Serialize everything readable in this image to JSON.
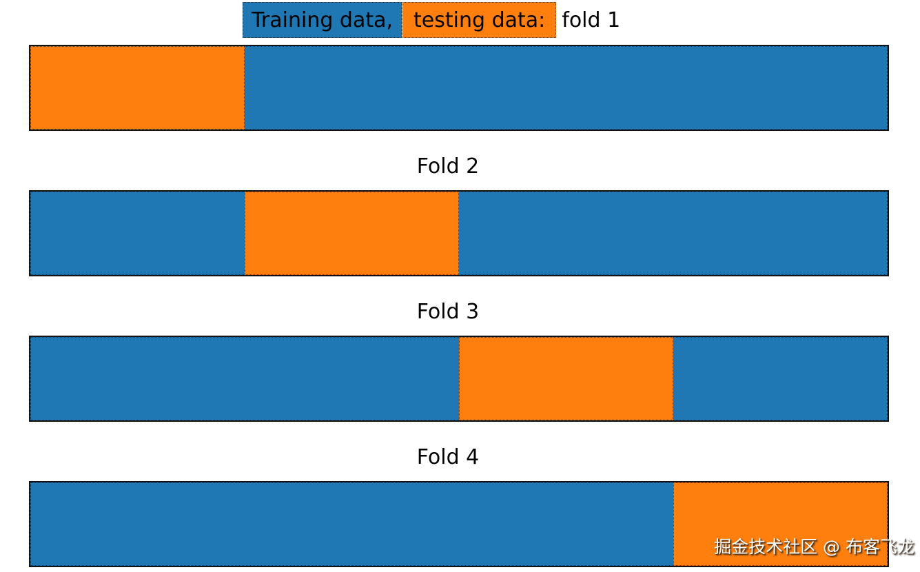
{
  "palette": {
    "background": "#ffffff",
    "train": "#1f77b4",
    "test": "#ff7f0e",
    "edge": "#111111",
    "watermark_text": "#ffffff"
  },
  "title": {
    "train_chip": "Training data,",
    "test_chip": "testing data:",
    "suffix": "fold 1"
  },
  "fold_labels": {
    "fold2": "Fold 2",
    "fold3": "Fold 3",
    "fold4": "Fold 4"
  },
  "folds": [
    {
      "id": "fold 1",
      "test_left_pct": "0%",
      "test_width_pct": "25%"
    },
    {
      "id": "fold 2",
      "test_left_pct": "25%",
      "test_width_pct": "25%"
    },
    {
      "id": "fold 3",
      "test_left_pct": "50%",
      "test_width_pct": "25%"
    },
    {
      "id": "fold 4",
      "test_left_pct": "75%",
      "test_width_pct": "25%"
    }
  ],
  "diagram_data": {
    "type": "k-fold-cross-validation",
    "n_folds": 4,
    "legend": {
      "train": "Training data",
      "test": "testing data"
    },
    "test_fraction_per_fold": 0.25,
    "test_quarter_by_fold": [
      1,
      2,
      3,
      4
    ]
  },
  "watermark": "掘金技术社区 @ 布客飞龙"
}
